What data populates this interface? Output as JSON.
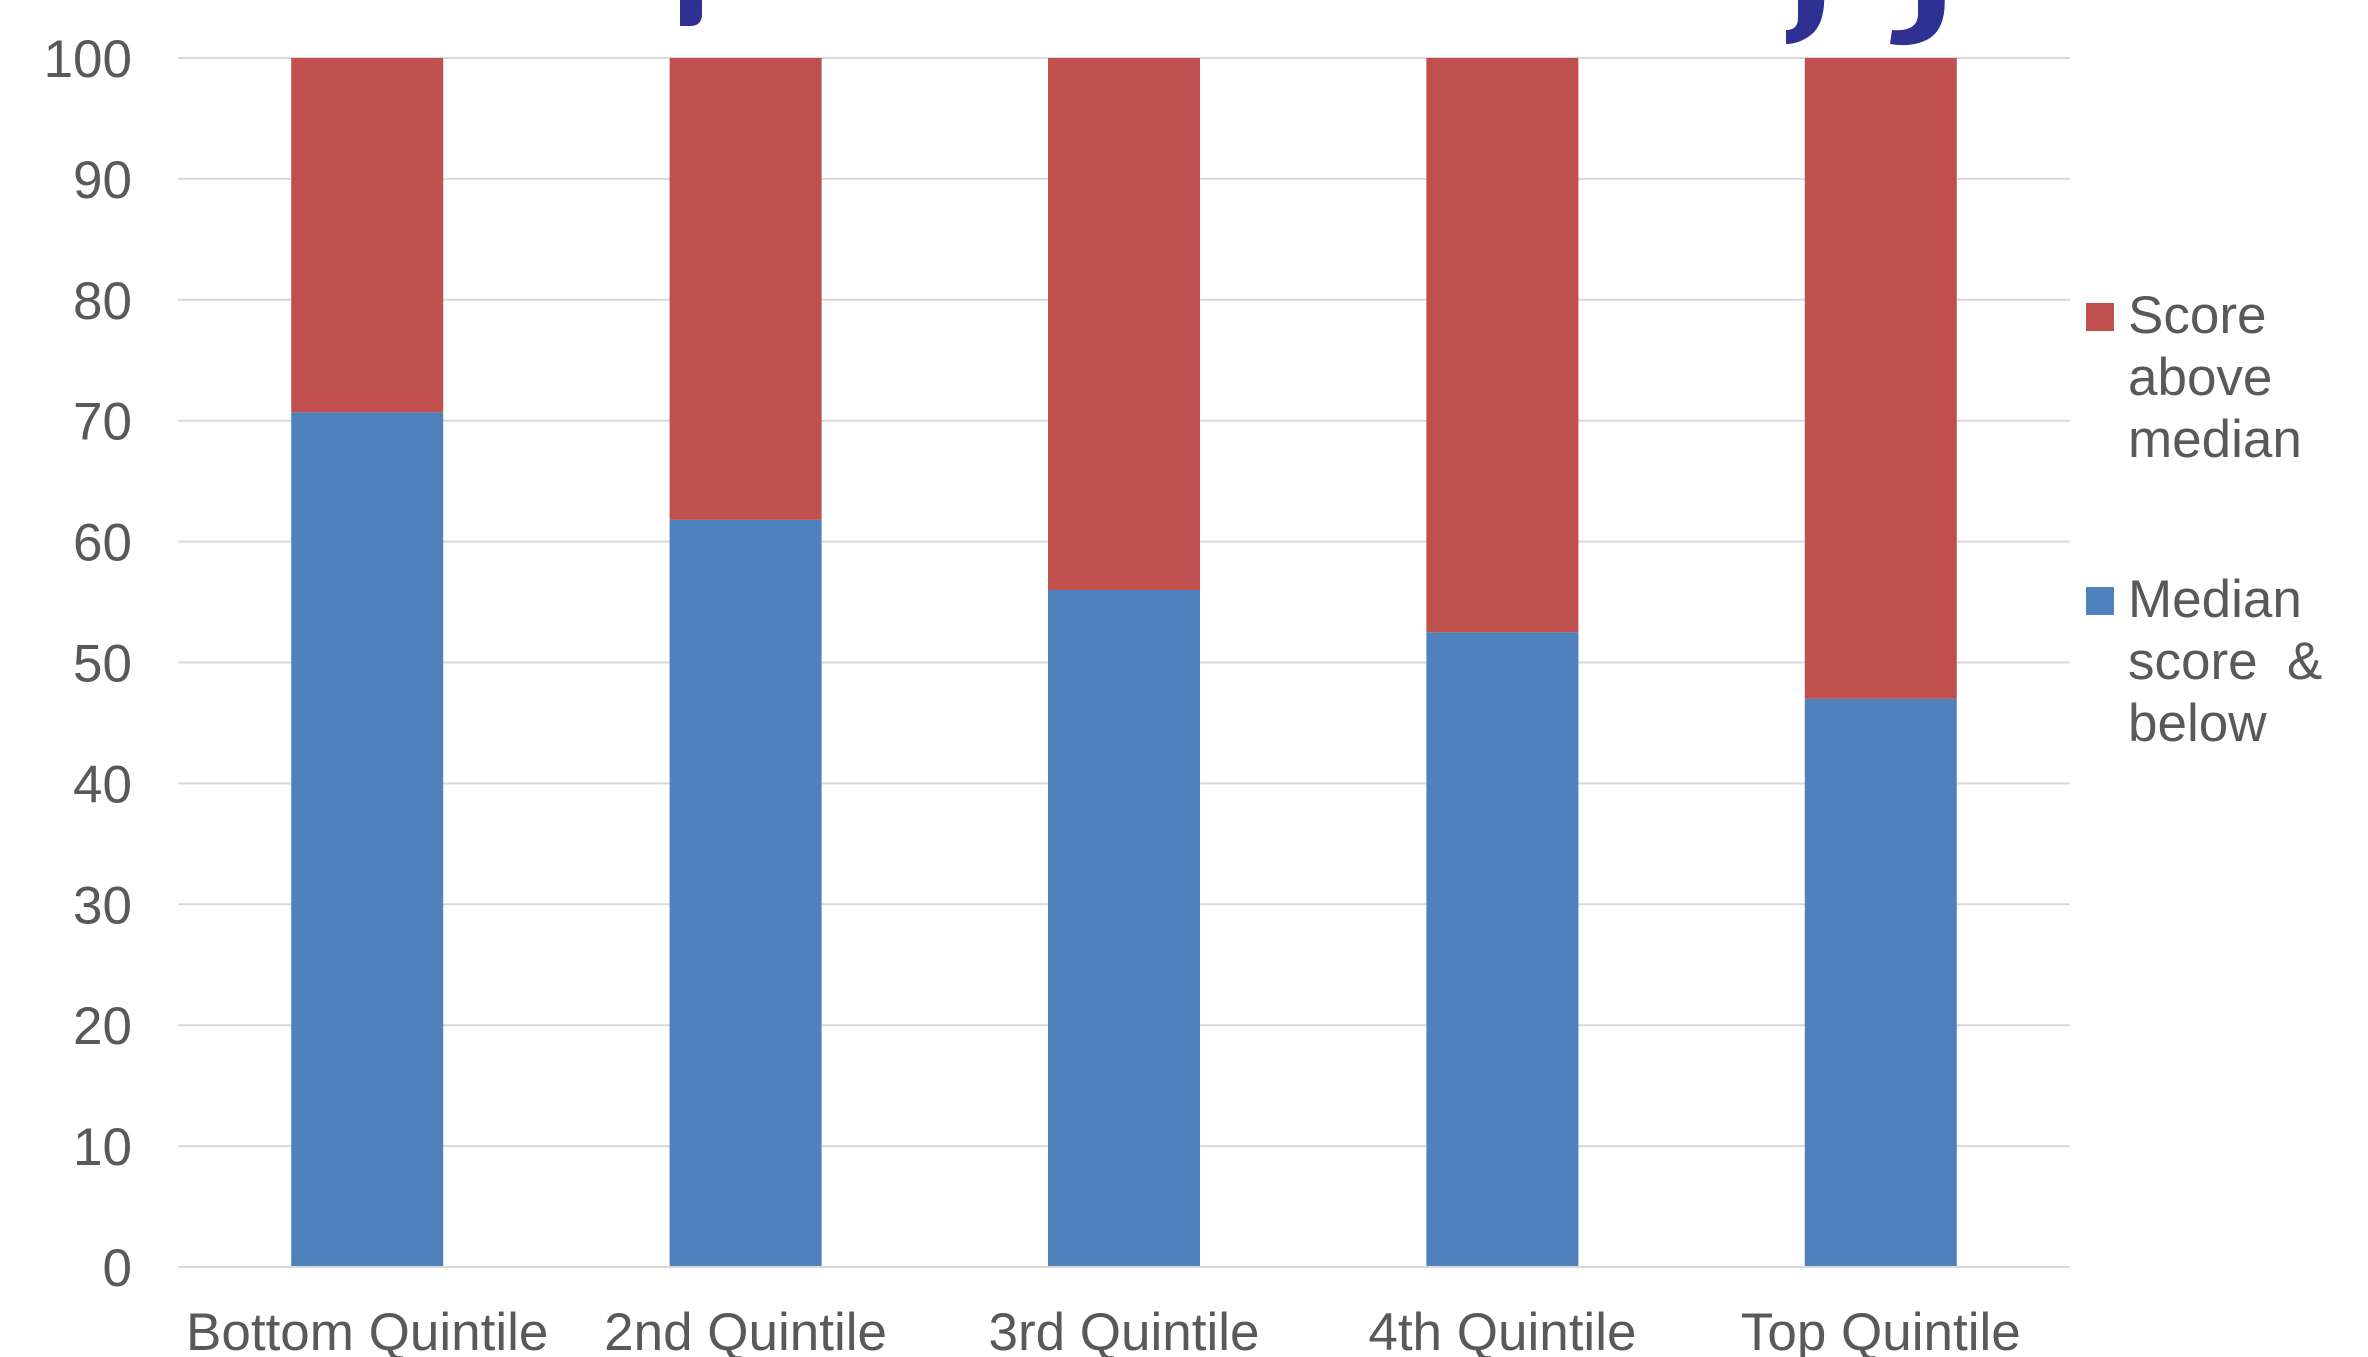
{
  "chart_data": {
    "type": "bar",
    "stacked": true,
    "title": "",
    "title_visible_fragment": "…p…  …y…g",
    "xlabel": "",
    "ylabel": "",
    "ylim": [
      0,
      100
    ],
    "yticks": [
      0,
      10,
      20,
      30,
      40,
      50,
      60,
      70,
      80,
      90,
      100
    ],
    "grid": true,
    "legend_position": "right",
    "categories": [
      "Bottom Quintile",
      "2nd Quintile",
      "3rd Quintile",
      "4th Quintile",
      "Top Quintile"
    ],
    "series": [
      {
        "name": "Median score  & below",
        "legend_lines": [
          "Median",
          "score  &",
          "below"
        ],
        "color": "#4F81BD",
        "values": [
          70.7,
          61.8,
          56,
          52.5,
          47
        ]
      },
      {
        "name": "Score above median",
        "legend_lines": [
          "Score",
          "above",
          "median"
        ],
        "color": "#C0504D",
        "values": [
          29.3,
          38.2,
          44,
          47.5,
          53
        ]
      }
    ],
    "title_color": "#2E3192"
  }
}
